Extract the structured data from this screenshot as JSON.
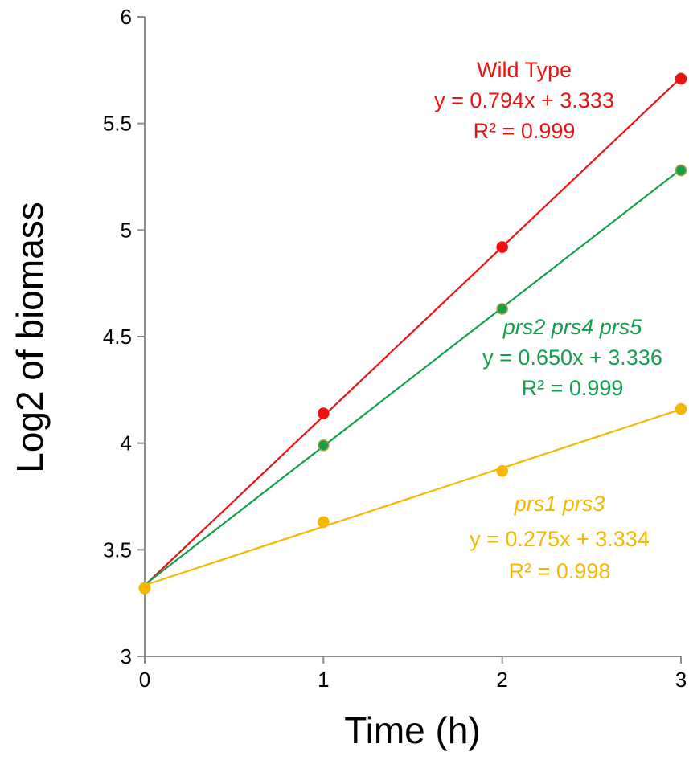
{
  "chart_data": {
    "type": "scatter",
    "xlabel": "Time (h)",
    "ylabel": "Log2 of biomass",
    "xlim": [
      0,
      3
    ],
    "ylim": [
      3,
      6
    ],
    "x_ticks": [
      "0",
      "1",
      "2",
      "3"
    ],
    "y_ticks": [
      "3",
      "3.5",
      "4",
      "4.5",
      "5",
      "5.5",
      "6"
    ],
    "grid": false,
    "series": [
      {
        "name": "Wild Type",
        "color": "#ee1111",
        "marker_edge": "#ee1111",
        "x": [
          0,
          1,
          2,
          3
        ],
        "y": [
          3.32,
          4.14,
          4.92,
          5.71
        ],
        "trendline": {
          "slope": 0.794,
          "intercept": 3.333
        },
        "annotation": {
          "name": "Wild Type",
          "equation": "y = 0.794x + 3.333",
          "r2": "R² = 0.999",
          "italic": false
        }
      },
      {
        "name": "prs2 prs4 prs5",
        "color": "#12a04a",
        "marker_edge": "#a8a040",
        "x": [
          0,
          1,
          2,
          3
        ],
        "y": [
          3.32,
          3.99,
          4.63,
          5.28
        ],
        "trendline": {
          "slope": 0.65,
          "intercept": 3.336
        },
        "annotation": {
          "name": "prs2 prs4 prs5",
          "equation": "y = 0.650x + 3.336",
          "r2": "R² = 0.999",
          "italic": true
        }
      },
      {
        "name": "prs1 prs3",
        "color": "#f5b800",
        "marker_edge": "#f5b800",
        "x": [
          0,
          1,
          2,
          3
        ],
        "y": [
          3.32,
          3.63,
          3.87,
          4.16
        ],
        "trendline": {
          "slope": 0.275,
          "intercept": 3.334
        },
        "annotation": {
          "name": "prs1 prs3",
          "equation": "y = 0.275x + 3.334",
          "r2": "R² = 0.998",
          "italic": true
        }
      }
    ]
  }
}
